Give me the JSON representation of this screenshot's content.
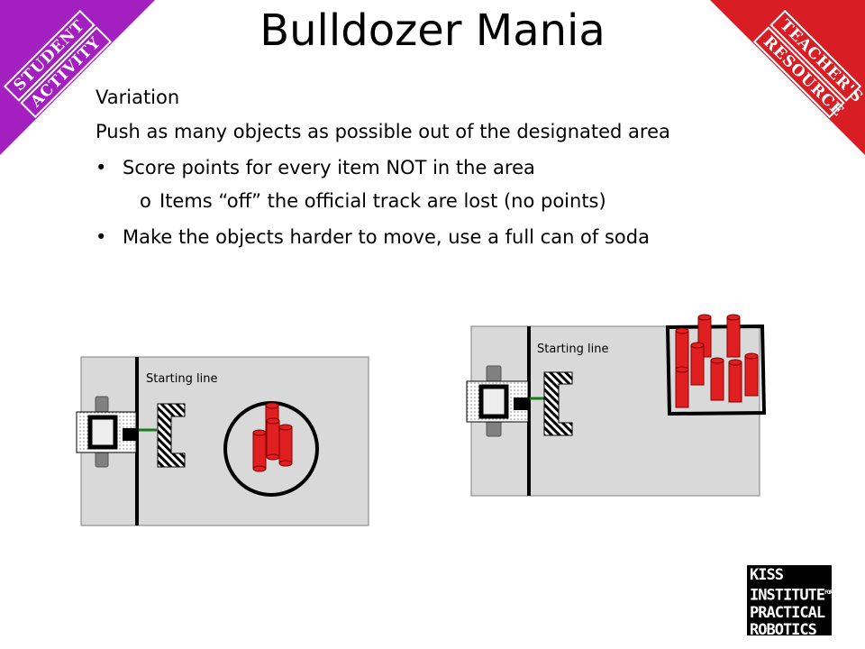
{
  "title": "Bulldozer Mania",
  "corner_left": [
    "STUDENT",
    "ACTIVITY"
  ],
  "corner_right": [
    "TEACHER'S",
    "RESOURCE"
  ],
  "variation_heading": "Variation",
  "intro": "Push as many objects as possible out of the designated area",
  "bullets": [
    "Score points for every item NOT in the area",
    "Make the objects harder to move, use a full can of soda"
  ],
  "sub_bullet": "Items “off” the official track are lost (no points)",
  "diagram_left": {
    "starting_line_label": "Starting line"
  },
  "diagram_right": {
    "starting_line_label": "Starting line"
  },
  "logo": {
    "lines": [
      "KISS",
      "INSTITUTE",
      "PRACTICAL",
      "ROBOTICS"
    ],
    "for": "FOR"
  },
  "colors": {
    "student": "#a31fc0",
    "teacher": "#d81e24",
    "can": "#e02020",
    "field": "#d9d9d9"
  }
}
